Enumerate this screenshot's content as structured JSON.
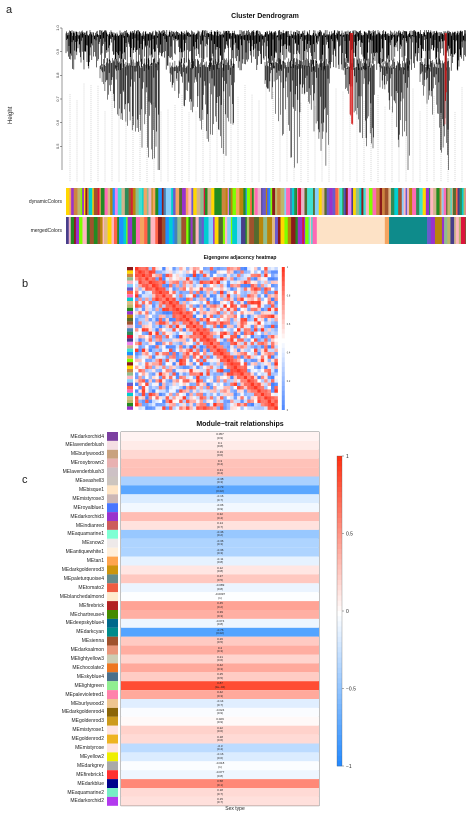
{
  "panels": {
    "a": {
      "label": "a",
      "title": "Cluster Dendrogram",
      "ylabel": "Height",
      "yticks": [
        "1.0",
        "0.9",
        "0.8",
        "0.7",
        "0.6",
        "0.5"
      ],
      "color_rows": [
        "dynamicColors",
        "mergedColors"
      ]
    },
    "b": {
      "label": "b",
      "title": "Eigengene adjacency heatmap",
      "scale_ticks": [
        "1",
        "0.8",
        "0.6",
        "0.4",
        "0.2",
        "0"
      ]
    },
    "c": {
      "label": "c",
      "title": "Module−trait relationships",
      "xlabel": "Sex type",
      "legend_ticks": [
        "1",
        "0.5",
        "0",
        "−0.5",
        "−1"
      ],
      "modules": [
        {
          "name": "MEdarkorchid4",
          "color": "#7b3fa0",
          "corr": 0.057,
          "p": "0.9"
        },
        {
          "name": "MElavenderblush",
          "color": "#f5dfe4",
          "corr": 0.1,
          "p": "0.8"
        },
        {
          "name": "MEburlywood3",
          "color": "#c9a27f",
          "corr": 0.19,
          "p": "0.6"
        },
        {
          "name": "MErosybrown2",
          "color": "#e8b1b1",
          "corr": 0.3,
          "p": "0.4"
        },
        {
          "name": "MElavenderblush3",
          "color": "#cdc1c5",
          "corr": 0.31,
          "p": "0.4"
        },
        {
          "name": "MEseashell3",
          "color": "#cdc5bf",
          "corr": -0.38,
          "p": "0.3"
        },
        {
          "name": "MEbisque1",
          "color": "#ffe4c4",
          "corr": -0.73,
          "p": "0.02"
        },
        {
          "name": "MEmistyrose3",
          "color": "#cdb7b5",
          "corr": -0.16,
          "p": "0.7"
        },
        {
          "name": "MEroyalblue1",
          "color": "#4876ff",
          "corr": -0.06,
          "p": "0.9"
        },
        {
          "name": "MEdarkorchid3",
          "color": "#9a32cd",
          "corr": 0.32,
          "p": "0.4"
        },
        {
          "name": "MEindianred",
          "color": "#cd5c5c",
          "corr": 0.14,
          "p": "0.7"
        },
        {
          "name": "MEaquamarine1",
          "color": "#7fffd4",
          "corr": -0.46,
          "p": "0.2"
        },
        {
          "name": "MEsnow2",
          "color": "#eee9e9",
          "corr": -0.36,
          "p": "0.3"
        },
        {
          "name": "MEantiquewhite1",
          "color": "#ffefdb",
          "corr": -0.36,
          "p": "0.3"
        },
        {
          "name": "MEtan1",
          "color": "#ffa54f",
          "corr": -0.11,
          "p": "0.8"
        },
        {
          "name": "MEdarkgoldenrod3",
          "color": "#cd950c",
          "corr": 0.12,
          "p": "0.8"
        },
        {
          "name": "MEpaleturquoise4",
          "color": "#668b8b",
          "corr": 0.27,
          "p": "0.5"
        },
        {
          "name": "MEtomato2",
          "color": "#ee5c42",
          "corr": -0.089,
          "p": "0.8"
        },
        {
          "name": "MEblanchedalmond",
          "color": "#ffebcd",
          "corr": -0.0097,
          "p": "1"
        },
        {
          "name": "MEfirebrick",
          "color": "#b22222",
          "corr": 0.45,
          "p": "0.2"
        },
        {
          "name": "MEchartreuse4",
          "color": "#458b00",
          "corr": 0.39,
          "p": "0.3"
        },
        {
          "name": "MEdeepskyblue4",
          "color": "#00688b",
          "corr": -0.074,
          "p": "0.8"
        },
        {
          "name": "MEdarkcyan",
          "color": "#008b8b",
          "corr": -0.76,
          "p": "0.02"
        },
        {
          "name": "MEsienna",
          "color": "#a0522d",
          "corr": 0.26,
          "p": "0.5"
        },
        {
          "name": "MEdarksalmon",
          "color": "#e9967a",
          "corr": 0.4,
          "p": "0.3"
        },
        {
          "name": "MElightyellow3",
          "color": "#cdcdb4",
          "corr": 0.21,
          "p": "0.6"
        },
        {
          "name": "MEchocolate2",
          "color": "#ee7621",
          "corr": 0.42,
          "p": "0.3"
        },
        {
          "name": "MEskyblue4",
          "color": "#4a708b",
          "corr": 0.25,
          "p": "0.5"
        },
        {
          "name": "MElightgreen",
          "color": "#90ee90",
          "corr": 0.87,
          "p": "3e−04"
        },
        {
          "name": "MEpalevioletred1",
          "color": "#ff82ab",
          "corr": 0.42,
          "p": "0.3"
        },
        {
          "name": "MEburlywood2",
          "color": "#eec591",
          "corr": -0.14,
          "p": "0.7"
        },
        {
          "name": "MEdarkgoldenrod4",
          "color": "#8b6508",
          "corr": -0.024,
          "p": "0.9"
        },
        {
          "name": "MEgoldenrod3",
          "color": "#cd9b1d",
          "corr": 0.029,
          "p": "0.9"
        },
        {
          "name": "MEmistyrose1",
          "color": "#ffe4e1",
          "corr": 0.22,
          "p": "0.6"
        },
        {
          "name": "MEgoldenrod2",
          "color": "#eeb422",
          "corr": 0.18,
          "p": "0.6"
        },
        {
          "name": "MEmistyrose",
          "color": "#ffe4e1",
          "corr": -0.3,
          "p": "0.4"
        },
        {
          "name": "MEyellow2",
          "color": "#eeee00",
          "corr": -0.16,
          "p": "0.6"
        },
        {
          "name": "MEdarkgrey",
          "color": "#a9a9a9",
          "corr": -0.018,
          "p": "1"
        },
        {
          "name": "MEfirebrick1",
          "color": "#ff3030",
          "corr": -0.077,
          "p": "0.8"
        },
        {
          "name": "MEdarkblue",
          "color": "#00008b",
          "corr": 0.58,
          "p": "0.1"
        },
        {
          "name": "MEaquamarine2",
          "color": "#76eec6",
          "corr": 0.18,
          "p": "0.7"
        },
        {
          "name": "MEdarkorchid2",
          "color": "#b23aee",
          "corr": 0.15,
          "p": "0.7"
        }
      ]
    }
  }
}
